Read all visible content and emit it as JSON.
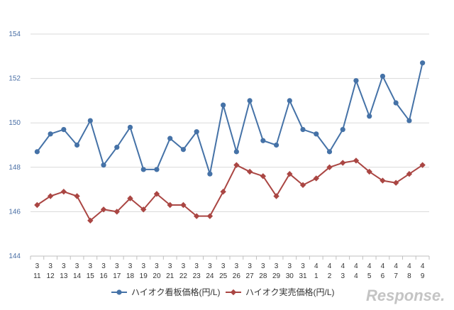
{
  "chart_data": {
    "type": "line",
    "title": "",
    "xlabel": "",
    "ylabel": "",
    "ylim": [
      144,
      154
    ],
    "yticks": [
      144,
      146,
      148,
      150,
      152,
      154
    ],
    "categories": [
      [
        "3",
        "11"
      ],
      [
        "3",
        "12"
      ],
      [
        "3",
        "13"
      ],
      [
        "3",
        "14"
      ],
      [
        "3",
        "15"
      ],
      [
        "3",
        "16"
      ],
      [
        "3",
        "17"
      ],
      [
        "3",
        "18"
      ],
      [
        "3",
        "19"
      ],
      [
        "3",
        "20"
      ],
      [
        "3",
        "21"
      ],
      [
        "3",
        "22"
      ],
      [
        "3",
        "23"
      ],
      [
        "3",
        "24"
      ],
      [
        "3",
        "25"
      ],
      [
        "3",
        "26"
      ],
      [
        "3",
        "27"
      ],
      [
        "3",
        "28"
      ],
      [
        "3",
        "29"
      ],
      [
        "3",
        "30"
      ],
      [
        "3",
        "31"
      ],
      [
        "4",
        "1"
      ],
      [
        "4",
        "2"
      ],
      [
        "4",
        "3"
      ],
      [
        "4",
        "4"
      ],
      [
        "4",
        "5"
      ],
      [
        "4",
        "6"
      ],
      [
        "4",
        "7"
      ],
      [
        "4",
        "8"
      ],
      [
        "4",
        "9"
      ]
    ],
    "series": [
      {
        "name": "ハイオク看板価格(円/L)",
        "color": "#4572a7",
        "marker": "circle",
        "values": [
          148.7,
          149.5,
          149.7,
          149.0,
          150.1,
          148.1,
          148.9,
          149.8,
          147.9,
          147.9,
          149.3,
          148.8,
          149.6,
          147.7,
          150.8,
          148.7,
          151.0,
          149.2,
          149.0,
          151.0,
          149.7,
          149.5,
          148.7,
          149.7,
          151.9,
          150.3,
          152.1,
          150.9,
          150.1,
          152.7
        ]
      },
      {
        "name": "ハイオク実売価格(円/L)",
        "color": "#aa4643",
        "marker": "diamond",
        "values": [
          146.3,
          146.7,
          146.9,
          146.7,
          145.6,
          146.1,
          146.0,
          146.6,
          146.1,
          146.8,
          146.3,
          146.3,
          145.8,
          145.8,
          146.9,
          148.1,
          147.8,
          147.6,
          146.7,
          147.7,
          147.2,
          147.5,
          148.0,
          148.2,
          148.3,
          147.8,
          147.4,
          147.3,
          147.7,
          148.1
        ]
      }
    ],
    "grid": true,
    "legend": "bottom"
  },
  "watermark": "Response."
}
